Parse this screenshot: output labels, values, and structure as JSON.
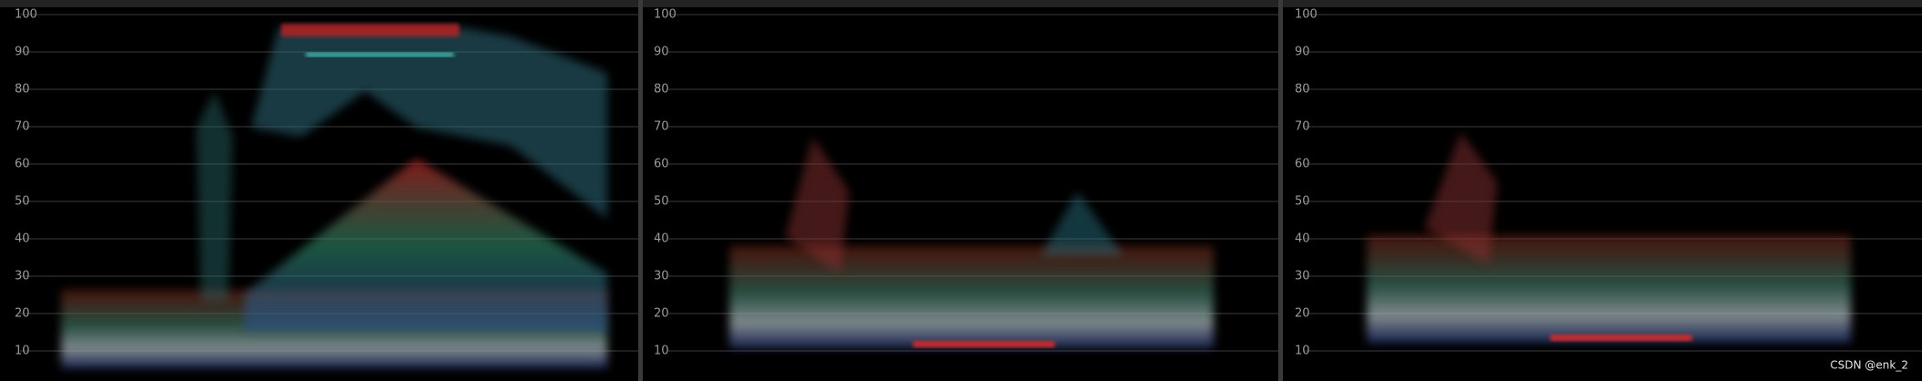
{
  "panels": [
    {
      "ticks": [
        100,
        90,
        80,
        70,
        60,
        50,
        40,
        30,
        20,
        10
      ]
    },
    {
      "ticks": [
        100,
        90,
        80,
        70,
        60,
        50,
        40,
        30,
        20,
        10
      ]
    },
    {
      "ticks": [
        100,
        90,
        80,
        70,
        60,
        50,
        40,
        30,
        20,
        10
      ]
    }
  ],
  "watermark": "CSDN @enk_2"
}
